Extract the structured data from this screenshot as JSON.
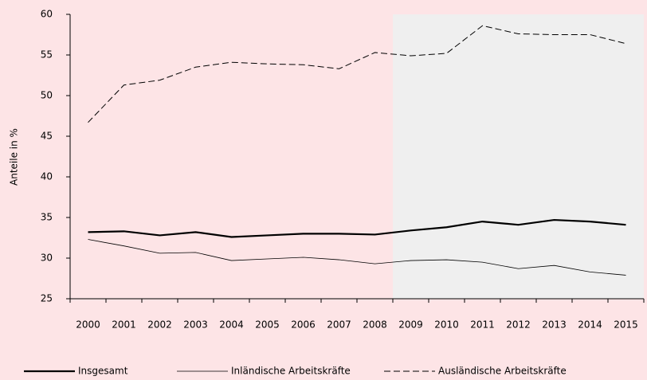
{
  "chart_data": {
    "type": "line",
    "y_label": "Anteile in %",
    "categories": [
      "2000",
      "2001",
      "2002",
      "2003",
      "2004",
      "2005",
      "2006",
      "2007",
      "2008",
      "2009",
      "2010",
      "2011",
      "2012",
      "2013",
      "2014",
      "2015"
    ],
    "series": [
      {
        "name": "Insgesamt",
        "color": "#000000",
        "line_style": "bold",
        "values": [
          33.2,
          33.3,
          32.8,
          33.2,
          32.6,
          32.8,
          33.0,
          33.0,
          32.9,
          33.4,
          33.8,
          34.5,
          34.1,
          34.7,
          34.5,
          34.1
        ]
      },
      {
        "name": "Inländische Arbeitskräfte",
        "color": "#000000",
        "line_style": "thin",
        "values": [
          32.3,
          31.5,
          30.6,
          30.7,
          29.7,
          29.9,
          30.1,
          29.8,
          29.3,
          29.7,
          29.8,
          29.5,
          28.7,
          29.1,
          28.3,
          27.9
        ]
      },
      {
        "name": "Ausländische Arbeitskräfte",
        "color": "#000000",
        "line_style": "dashed",
        "values": [
          46.7,
          51.3,
          51.9,
          53.5,
          54.1,
          53.9,
          53.8,
          53.3,
          55.3,
          54.9,
          55.2,
          58.6,
          57.6,
          57.5,
          57.5,
          56.4
        ]
      }
    ],
    "ylim": [
      25,
      60
    ],
    "yticks": [
      25,
      30,
      35,
      40,
      45,
      50,
      55,
      60
    ]
  }
}
